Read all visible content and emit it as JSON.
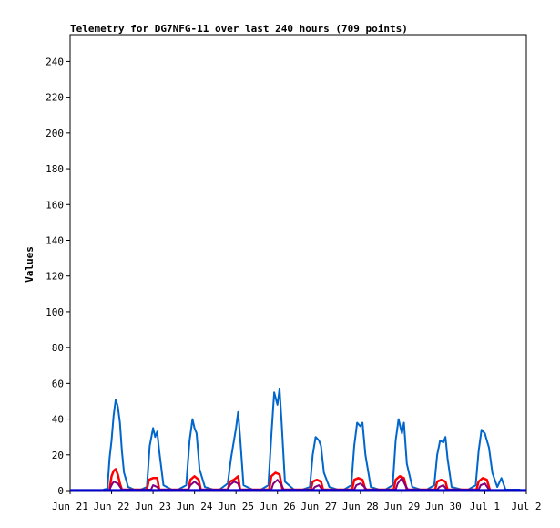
{
  "chart_data": {
    "type": "line",
    "title": "Telemetry for DG7NFG-11 over last 240 hours (709 points)",
    "xlabel": "",
    "ylabel": "Values",
    "ylim": [
      0,
      255
    ],
    "yticks": [
      0,
      20,
      40,
      60,
      80,
      100,
      120,
      140,
      160,
      180,
      200,
      220,
      240
    ],
    "xlim": [
      0,
      11
    ],
    "xticks": [
      {
        "v": 0,
        "label": "Jun 21"
      },
      {
        "v": 1,
        "label": "Jun 22"
      },
      {
        "v": 2,
        "label": "Jun 23"
      },
      {
        "v": 3,
        "label": "Jun 24"
      },
      {
        "v": 4,
        "label": "Jun 25"
      },
      {
        "v": 5,
        "label": "Jun 26"
      },
      {
        "v": 6,
        "label": "Jun 27"
      },
      {
        "v": 7,
        "label": "Jun 28"
      },
      {
        "v": 8,
        "label": "Jun 29"
      },
      {
        "v": 9,
        "label": "Jun 30"
      },
      {
        "v": 10,
        "label": "Jul 1"
      },
      {
        "v": 11,
        "label": "Jul 2"
      }
    ],
    "grid": false,
    "legend": "none",
    "series": [
      {
        "color": "#0066cc",
        "values": [
          [
            0.8,
            0.5
          ],
          [
            0.9,
            1
          ],
          [
            0.95,
            18
          ],
          [
            1.0,
            28
          ],
          [
            1.05,
            42
          ],
          [
            1.1,
            51
          ],
          [
            1.15,
            47
          ],
          [
            1.2,
            38
          ],
          [
            1.25,
            22
          ],
          [
            1.3,
            10
          ],
          [
            1.4,
            2
          ],
          [
            1.55,
            0.5
          ],
          [
            1.7,
            0.5
          ],
          [
            1.85,
            2
          ],
          [
            1.92,
            25
          ],
          [
            2.0,
            35
          ],
          [
            2.05,
            30
          ],
          [
            2.1,
            33
          ],
          [
            2.15,
            22
          ],
          [
            2.25,
            3
          ],
          [
            2.45,
            0.5
          ],
          [
            2.6,
            0.5
          ],
          [
            2.8,
            3
          ],
          [
            2.88,
            28
          ],
          [
            2.95,
            40
          ],
          [
            3.0,
            35
          ],
          [
            3.05,
            32
          ],
          [
            3.12,
            12
          ],
          [
            3.25,
            2
          ],
          [
            3.45,
            0.5
          ],
          [
            3.6,
            0.5
          ],
          [
            3.8,
            4
          ],
          [
            3.88,
            18
          ],
          [
            3.95,
            28
          ],
          [
            4.0,
            35
          ],
          [
            4.05,
            44
          ],
          [
            4.1,
            30
          ],
          [
            4.18,
            3
          ],
          [
            4.4,
            0.5
          ],
          [
            4.6,
            0.5
          ],
          [
            4.78,
            3
          ],
          [
            4.85,
            30
          ],
          [
            4.92,
            55
          ],
          [
            5.0,
            48
          ],
          [
            5.05,
            57
          ],
          [
            5.1,
            38
          ],
          [
            5.18,
            5
          ],
          [
            5.4,
            0.5
          ],
          [
            5.6,
            0.5
          ],
          [
            5.78,
            2
          ],
          [
            5.85,
            20
          ],
          [
            5.92,
            30
          ],
          [
            6.0,
            28
          ],
          [
            6.05,
            25
          ],
          [
            6.12,
            10
          ],
          [
            6.25,
            2
          ],
          [
            6.45,
            0.5
          ],
          [
            6.6,
            0.5
          ],
          [
            6.78,
            3
          ],
          [
            6.85,
            25
          ],
          [
            6.92,
            38
          ],
          [
            7.0,
            36
          ],
          [
            7.05,
            38
          ],
          [
            7.12,
            20
          ],
          [
            7.25,
            2
          ],
          [
            7.45,
            0.5
          ],
          [
            7.6,
            0.5
          ],
          [
            7.78,
            3
          ],
          [
            7.85,
            28
          ],
          [
            7.92,
            40
          ],
          [
            8.0,
            32
          ],
          [
            8.05,
            38
          ],
          [
            8.12,
            15
          ],
          [
            8.25,
            2
          ],
          [
            8.45,
            0.5
          ],
          [
            8.6,
            0.5
          ],
          [
            8.78,
            3
          ],
          [
            8.85,
            20
          ],
          [
            8.92,
            28
          ],
          [
            9.0,
            27
          ],
          [
            9.05,
            30
          ],
          [
            9.1,
            18
          ],
          [
            9.2,
            2
          ],
          [
            9.45,
            0.5
          ],
          [
            9.6,
            0.5
          ],
          [
            9.78,
            3
          ],
          [
            9.85,
            22
          ],
          [
            9.92,
            34
          ],
          [
            10.0,
            32
          ],
          [
            10.05,
            28
          ],
          [
            10.1,
            24
          ],
          [
            10.18,
            10
          ],
          [
            10.3,
            2
          ],
          [
            10.4,
            7
          ],
          [
            10.5,
            0.5
          ],
          [
            10.85,
            0.5
          ]
        ]
      },
      {
        "color": "#ff0000",
        "values": [
          [
            0.95,
            0.5
          ],
          [
            1.0,
            8
          ],
          [
            1.05,
            11
          ],
          [
            1.1,
            12
          ],
          [
            1.15,
            9
          ],
          [
            1.2,
            4
          ],
          [
            1.25,
            0.5
          ],
          [
            1.85,
            0.5
          ],
          [
            1.9,
            6
          ],
          [
            2.0,
            7
          ],
          [
            2.1,
            7
          ],
          [
            2.15,
            0.5
          ],
          [
            2.85,
            0.5
          ],
          [
            2.9,
            6
          ],
          [
            3.0,
            8
          ],
          [
            3.1,
            6
          ],
          [
            3.15,
            0.5
          ],
          [
            3.8,
            0.5
          ],
          [
            3.85,
            5
          ],
          [
            3.95,
            6
          ],
          [
            4.05,
            8
          ],
          [
            4.1,
            0.5
          ],
          [
            4.8,
            0.5
          ],
          [
            4.85,
            8
          ],
          [
            4.95,
            10
          ],
          [
            5.05,
            9
          ],
          [
            5.12,
            0.5
          ],
          [
            5.8,
            0.5
          ],
          [
            5.85,
            5
          ],
          [
            5.95,
            6
          ],
          [
            6.05,
            5
          ],
          [
            6.1,
            0.5
          ],
          [
            6.8,
            0.5
          ],
          [
            6.85,
            6
          ],
          [
            6.95,
            7
          ],
          [
            7.05,
            6
          ],
          [
            7.12,
            0.5
          ],
          [
            7.8,
            0.5
          ],
          [
            7.85,
            6
          ],
          [
            7.95,
            8
          ],
          [
            8.05,
            7
          ],
          [
            8.12,
            0.5
          ],
          [
            8.8,
            0.5
          ],
          [
            8.85,
            5
          ],
          [
            8.95,
            6
          ],
          [
            9.05,
            5
          ],
          [
            9.1,
            0.5
          ],
          [
            9.8,
            0.5
          ],
          [
            9.85,
            5
          ],
          [
            9.95,
            7
          ],
          [
            10.05,
            6
          ],
          [
            10.12,
            0.5
          ]
        ]
      },
      {
        "color": "#800080",
        "values": [
          [
            0.95,
            0.5
          ],
          [
            1.0,
            3
          ],
          [
            1.05,
            5
          ],
          [
            1.15,
            4
          ],
          [
            1.25,
            0.5
          ],
          [
            1.95,
            0.5
          ],
          [
            2.0,
            3
          ],
          [
            2.1,
            2
          ],
          [
            2.15,
            0.5
          ],
          [
            2.85,
            0.5
          ],
          [
            2.9,
            3
          ],
          [
            3.0,
            5
          ],
          [
            3.1,
            3
          ],
          [
            3.15,
            0.5
          ],
          [
            3.8,
            0.5
          ],
          [
            3.85,
            3
          ],
          [
            3.95,
            5
          ],
          [
            4.05,
            4
          ],
          [
            4.1,
            0.5
          ],
          [
            4.85,
            0.5
          ],
          [
            4.9,
            4
          ],
          [
            5.0,
            6
          ],
          [
            5.1,
            3
          ],
          [
            5.15,
            0.5
          ],
          [
            5.85,
            0.5
          ],
          [
            5.9,
            2
          ],
          [
            6.0,
            3
          ],
          [
            6.08,
            0.5
          ],
          [
            6.85,
            0.5
          ],
          [
            6.9,
            3
          ],
          [
            7.0,
            4
          ],
          [
            7.1,
            2
          ],
          [
            7.15,
            0.5
          ],
          [
            7.85,
            0.5
          ],
          [
            7.9,
            4
          ],
          [
            8.0,
            7
          ],
          [
            8.08,
            3
          ],
          [
            8.15,
            0.5
          ],
          [
            8.85,
            0.5
          ],
          [
            8.9,
            2
          ],
          [
            9.0,
            3
          ],
          [
            9.08,
            0.5
          ],
          [
            9.85,
            0.5
          ],
          [
            9.9,
            3
          ],
          [
            10.0,
            4
          ],
          [
            10.1,
            0.5
          ]
        ]
      },
      {
        "color": "#0000cc",
        "values": [
          [
            0.0,
            0.3
          ],
          [
            11.0,
            0.3
          ]
        ]
      }
    ]
  }
}
